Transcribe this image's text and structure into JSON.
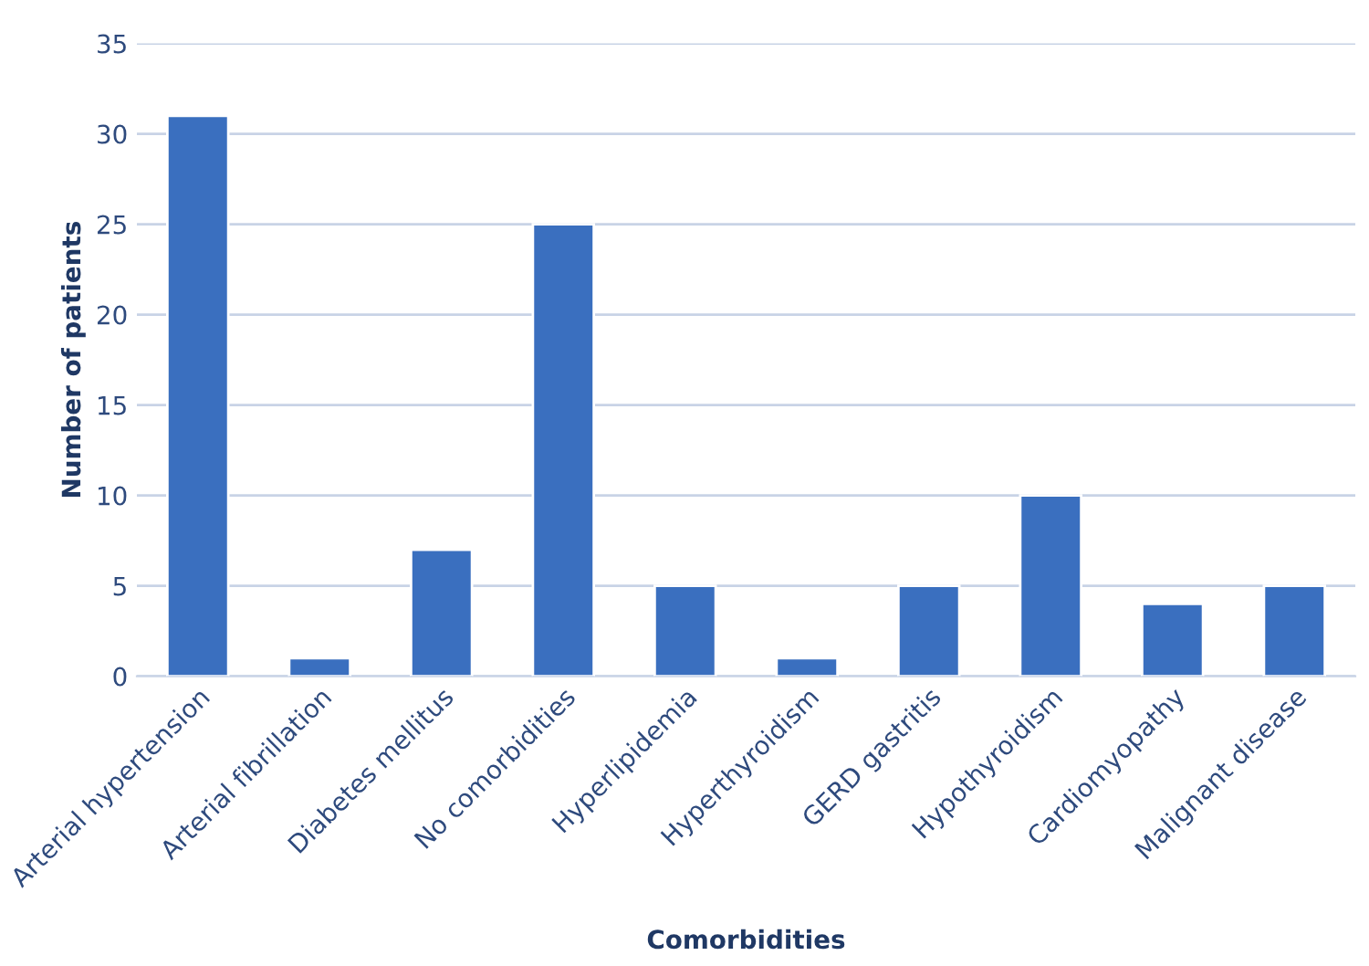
{
  "chart_data": {
    "type": "bar",
    "xlabel": "Comorbidities",
    "ylabel": "Number of patients",
    "categories": [
      "Arterial hypertension",
      "Arterial fibrillation",
      "Diabetes mellitus",
      "No comorbidities",
      "Hyperlipidemia",
      "Hyperthyroidism",
      "GERD gastritis",
      "Hypothyroidism",
      "Cardiomyopathy",
      "Malignant disease"
    ],
    "values": [
      31,
      1,
      7,
      25,
      5,
      1,
      5,
      10,
      4,
      5
    ],
    "color": "#3a6fbf",
    "ylim": [
      0,
      35
    ],
    "yticks": [
      0,
      5,
      10,
      15,
      20,
      25,
      30,
      35
    ],
    "grid": "y"
  }
}
